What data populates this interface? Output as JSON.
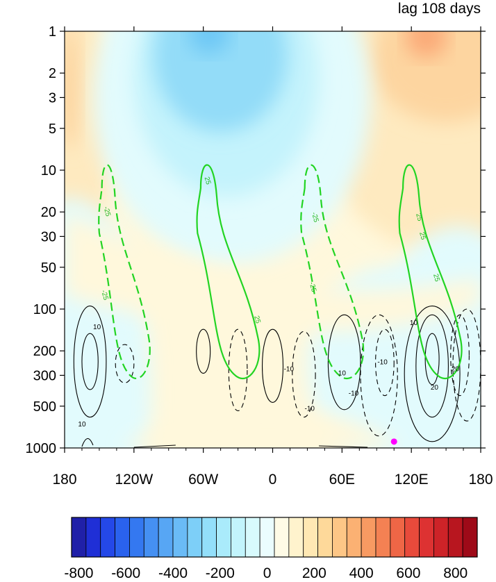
{
  "chart_data": {
    "type": "heatmap",
    "title": "lag 108 days",
    "xlabel": "",
    "ylabel": "",
    "x_ticks": [
      "180",
      "120W",
      "60W",
      "0",
      "60E",
      "120E",
      "180"
    ],
    "x_tick_values": [
      -180,
      -120,
      -60,
      0,
      60,
      120,
      180
    ],
    "y_ticks": [
      "1",
      "2",
      "3",
      "5",
      "10",
      "20",
      "30",
      "50",
      "100",
      "200",
      "300",
      "500",
      "1000"
    ],
    "y_tick_values": [
      1,
      2,
      3,
      5,
      10,
      20,
      30,
      50,
      100,
      200,
      300,
      500,
      1000
    ],
    "y_scale": "log",
    "y_reversed": true,
    "xlim": [
      -180,
      180
    ],
    "ylim": [
      1,
      1000
    ],
    "colorbar": {
      "labels": [
        "-800",
        "-600",
        "-400",
        "-200",
        "0",
        "200",
        "400",
        "600",
        "800"
      ],
      "min": -800,
      "max": 800,
      "step": 50,
      "colors": [
        "#2020a8",
        "#1f2fd6",
        "#2448e8",
        "#2a62ee",
        "#3478f0",
        "#4590f2",
        "#57a6f4",
        "#6abbf6",
        "#7dcff8",
        "#93dffa",
        "#aaebfb",
        "#c2f4fc",
        "#d8fafd",
        "#ebfdfe",
        "#fffbe6",
        "#fff3cd",
        "#ffe8b3",
        "#fed99a",
        "#fdc686",
        "#fbb173",
        "#f89a62",
        "#f48153",
        "#ef6646",
        "#e84a3b",
        "#dd3232",
        "#cd2328",
        "#b8161f",
        "#9e0a18"
      ]
    },
    "field_colors": {
      "strong_neg": "#6ec8f5",
      "mid_neg": "#93dcf8",
      "weak_neg": "#c4f3fc",
      "faint_neg": "#e2fbfd",
      "faint_pos": "#fff8dc",
      "weak_pos": "#feeac0",
      "mid_pos": "#fdd5a0",
      "strong_pos": "#fbaa78"
    },
    "green_contours": [
      {
        "label": "-25",
        "sign": "negative",
        "lon_range": [
          -150,
          -105
        ],
        "p_top": 9,
        "p_bottom": 320,
        "label_values": [
          "-25",
          "-25"
        ]
      },
      {
        "label": "25",
        "sign": "positive",
        "lon_range": [
          -65,
          -10
        ],
        "p_top": 9,
        "p_bottom": 320,
        "label_values": [
          "25",
          "25"
        ]
      },
      {
        "label": "-25",
        "sign": "negative",
        "lon_range": [
          25,
          80
        ],
        "p_top": 9,
        "p_bottom": 320,
        "label_values": [
          "-25",
          "-25"
        ]
      },
      {
        "label": "25",
        "sign": "positive",
        "lon_range": [
          110,
          165
        ],
        "p_top": 9,
        "p_bottom": 320,
        "label_values": [
          "25",
          "25",
          "25"
        ]
      }
    ],
    "black_contour_labels": [
      "10",
      "10",
      "-10",
      "-10",
      "10",
      "20",
      "20",
      "10",
      "-10",
      "-10"
    ],
    "marker": {
      "lon": 105,
      "p": 900,
      "color": "#ff00ff"
    },
    "grid": false,
    "legend": "none"
  }
}
